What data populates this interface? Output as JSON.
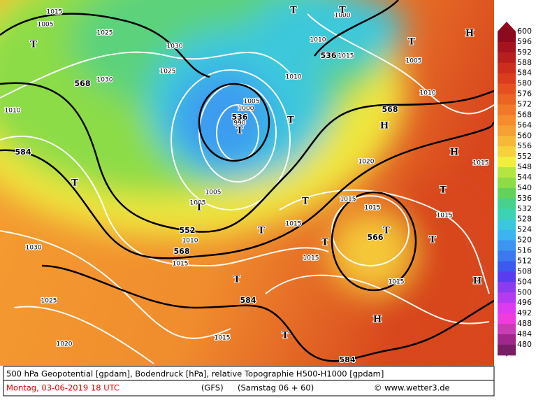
{
  "legend": {
    "levels": [
      600,
      596,
      592,
      588,
      584,
      580,
      576,
      572,
      568,
      564,
      560,
      556,
      552,
      548,
      544,
      540,
      536,
      532,
      528,
      524,
      520,
      516,
      512,
      508,
      504,
      500,
      496,
      492,
      488,
      484,
      480
    ],
    "colors": [
      "#8c0a1e",
      "#a5141e",
      "#b91e1e",
      "#cd2d1e",
      "#dc3c1e",
      "#e6501e",
      "#eb6423",
      "#f07828",
      "#f58c2d",
      "#f5a032",
      "#f5b937",
      "#f5d23c",
      "#f0f03c",
      "#b4e641",
      "#8cdc46",
      "#64d25a",
      "#46d28c",
      "#3cd2b4",
      "#3cc8dc",
      "#3cb4f0",
      "#3c96f0",
      "#3c78f0",
      "#3c5af0",
      "#5a3cf0",
      "#8c3cf0",
      "#b43cf0",
      "#dc3cf0",
      "#f03cdc",
      "#c83cb4",
      "#a0288c",
      "#781e64"
    ]
  },
  "geopotential_labels": [
    "568",
    "536",
    "536",
    "584",
    "552",
    "568",
    "568",
    "566",
    "584",
    "584"
  ],
  "pressure_labels": [
    "1015",
    "1005",
    "1025",
    "1030",
    "1025",
    "1030",
    "1010",
    "1005",
    "1000",
    "990",
    "1005",
    "1005",
    "1010",
    "1015",
    "1030",
    "1025",
    "1020",
    "1015",
    "1015",
    "1015",
    "1015",
    "1015",
    "1015",
    "1020",
    "1010",
    "1015",
    "1005",
    "1010",
    "1010",
    "1015",
    "1015",
    "1000"
  ],
  "markers": [
    "T",
    "T",
    "T",
    "H",
    "T",
    "H",
    "T",
    "T",
    "H",
    "T",
    "T",
    "T",
    "T",
    "T",
    "T",
    "T",
    "T",
    "H",
    "T",
    "T",
    "H"
  ],
  "footer": {
    "description": "500 hPa Geopotential [gpdam], Bodendruck [hPa], relative Topographie H500-H1000 [gpdam]",
    "date": "Montag, 03-06-2019   18 UTC",
    "model": "(GFS)",
    "run": "(Samstag 06 + 60)",
    "credit": "© www.wetter3.de"
  }
}
